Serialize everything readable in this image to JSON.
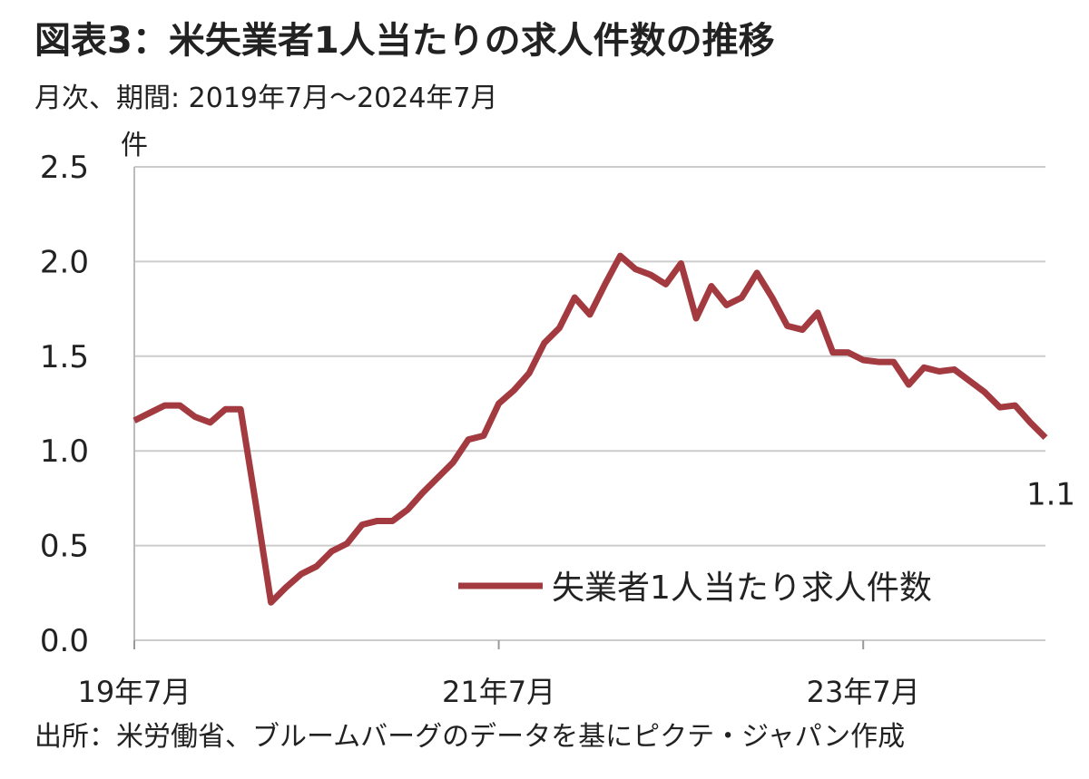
{
  "chart_data": {
    "type": "line",
    "title": "図表3：米失業者1人当たりの求人件数の推移",
    "subtitle": "月次、期間: 2019年7月～2024年7月",
    "y_unit": "件",
    "source": "出所：米労働省、ブルームバーグのデータを基にピクテ・ジャパン作成",
    "categories": [
      "19年7月",
      null,
      null,
      null,
      null,
      null,
      null,
      null,
      null,
      null,
      null,
      null,
      null,
      null,
      null,
      null,
      null,
      null,
      null,
      null,
      null,
      null,
      null,
      null,
      "21年7月",
      null,
      null,
      null,
      null,
      null,
      null,
      null,
      null,
      null,
      null,
      null,
      null,
      null,
      null,
      null,
      null,
      null,
      null,
      null,
      null,
      null,
      null,
      null,
      "23年7月",
      null,
      null,
      null,
      null,
      null,
      null,
      null,
      null,
      null,
      null,
      null,
      null
    ],
    "series": [
      {
        "name": "失業者1人当たり求人件数",
        "color": "#a33a40",
        "values": [
          1.16,
          1.2,
          1.24,
          1.24,
          1.18,
          1.15,
          1.22,
          1.22,
          0.72,
          0.2,
          0.28,
          0.35,
          0.39,
          0.47,
          0.51,
          0.61,
          0.63,
          0.63,
          0.69,
          0.78,
          0.86,
          0.94,
          1.06,
          1.08,
          1.25,
          1.32,
          1.41,
          1.57,
          1.65,
          1.81,
          1.72,
          1.88,
          2.03,
          1.96,
          1.93,
          1.88,
          1.99,
          1.7,
          1.87,
          1.77,
          1.81,
          1.94,
          1.81,
          1.66,
          1.64,
          1.73,
          1.52,
          1.52,
          1.48,
          1.47,
          1.47,
          1.35,
          1.44,
          1.42,
          1.43,
          1.37,
          1.31,
          1.23,
          1.24,
          1.15,
          1.07
        ],
        "value_labels": [
          null,
          null,
          null,
          null,
          null,
          null,
          null,
          null,
          null,
          null,
          null,
          null,
          null,
          null,
          null,
          null,
          null,
          null,
          null,
          null,
          null,
          null,
          null,
          null,
          null,
          null,
          null,
          null,
          null,
          null,
          null,
          null,
          null,
          null,
          null,
          null,
          null,
          null,
          null,
          null,
          null,
          null,
          null,
          null,
          null,
          null,
          null,
          null,
          null,
          null,
          null,
          null,
          null,
          null,
          null,
          null,
          null,
          null,
          null,
          null,
          "1.1"
        ]
      }
    ],
    "ylim": [
      0,
      2.5
    ],
    "yticks": [
      {
        "value": 0,
        "label": "0.0"
      },
      0.5,
      {
        "value": 1,
        "label": "1.0"
      },
      1.5,
      {
        "value": 2,
        "label": "2.0"
      },
      2.5
    ],
    "grid": true
  }
}
